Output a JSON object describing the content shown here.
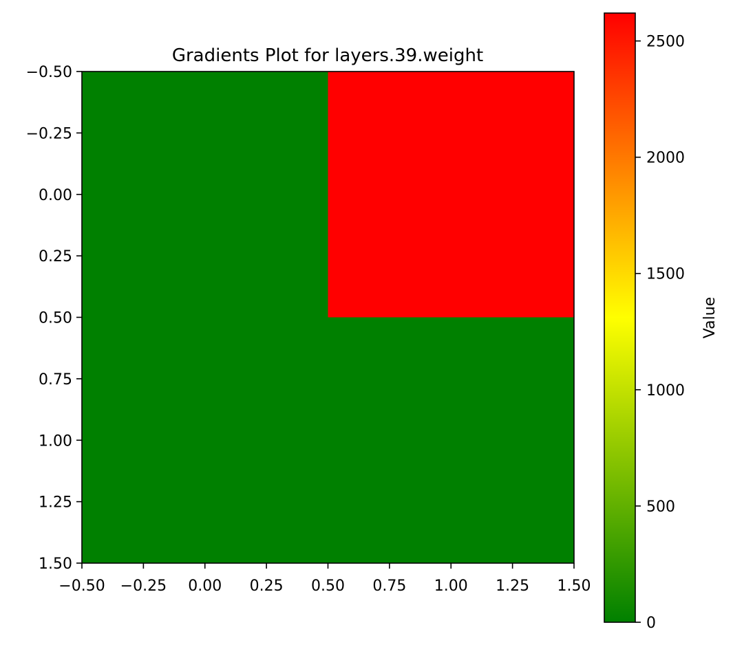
{
  "chart_data": {
    "type": "heatmap",
    "title": "Gradients Plot for layers.39.weight",
    "xlabel": "",
    "ylabel": "",
    "grid": false,
    "xlim": [
      -0.5,
      1.5
    ],
    "ylim": [
      1.5,
      -0.5
    ],
    "x_ticks": [
      "−0.50",
      "−0.25",
      "0.00",
      "0.25",
      "0.50",
      "0.75",
      "1.00",
      "1.25",
      "1.50"
    ],
    "y_ticks": [
      "−0.50",
      "−0.25",
      "0.00",
      "0.25",
      "0.50",
      "0.75",
      "1.00",
      "1.25",
      "1.50"
    ],
    "values": [
      [
        0,
        2620
      ],
      [
        0,
        0
      ]
    ],
    "colorbar": {
      "label": "Value",
      "range": [
        0,
        2620
      ],
      "ticks": [
        "0",
        "500",
        "1000",
        "1500",
        "2000",
        "2500"
      ],
      "tick_values": [
        0,
        500,
        1000,
        1500,
        2000,
        2500
      ],
      "colors": [
        "#008000",
        "#ffff00",
        "#ff0000"
      ]
    }
  }
}
